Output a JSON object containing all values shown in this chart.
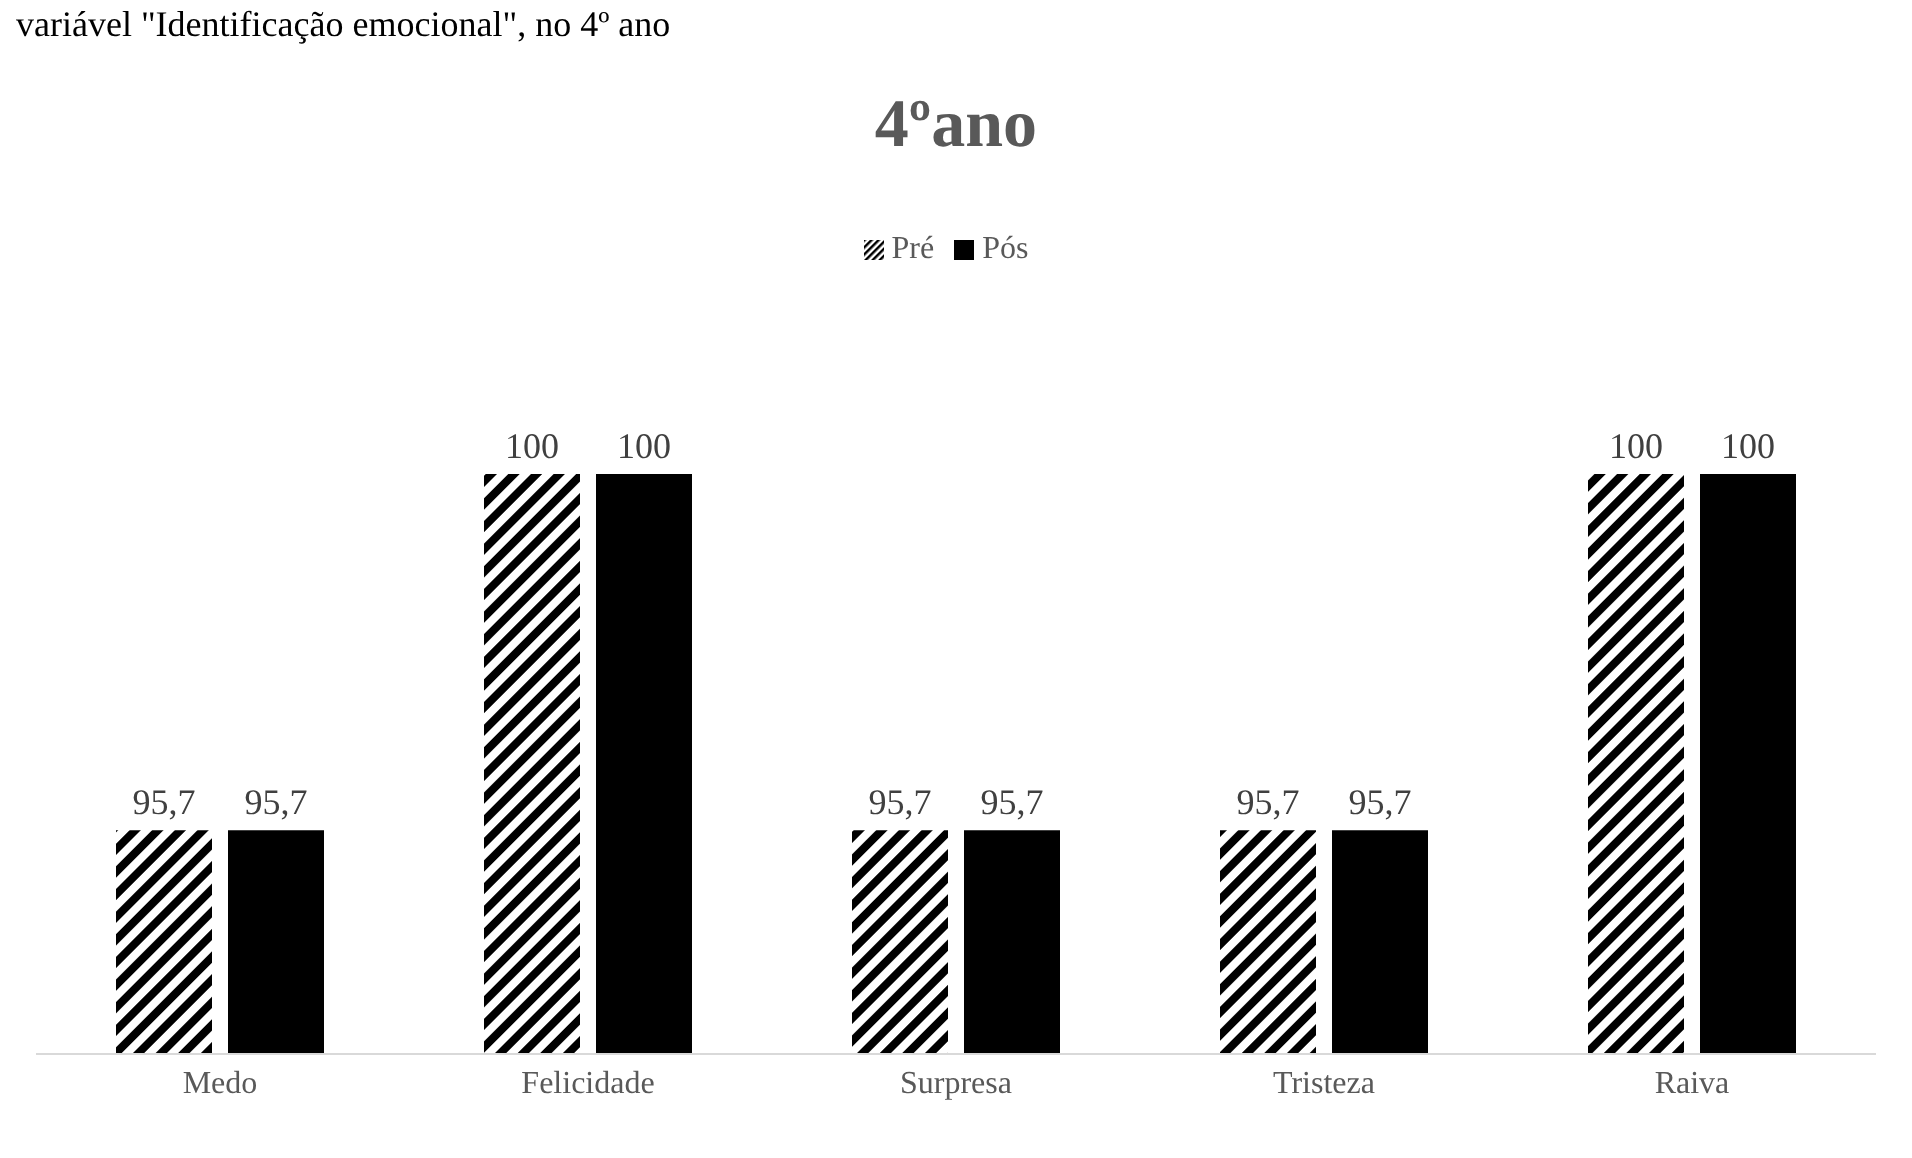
{
  "chart_data": {
    "type": "bar",
    "title": "4ºano",
    "annotations": [
      "variável \"Identificação emocional\", no 4º ano"
    ],
    "categories": [
      "Medo",
      "Felicidade",
      "Surpresa",
      "Tristeza",
      "Raiva"
    ],
    "series": [
      {
        "name": "Pré",
        "color": "#000000",
        "values": [
          95.7,
          100,
          95.7,
          95.7,
          100
        ],
        "value_labels": [
          "95,7",
          "100",
          "95,7",
          "95,7",
          "100"
        ]
      },
      {
        "name": "Pós",
        "color": "#000000",
        "values": [
          95.7,
          100,
          95.7,
          95.7,
          100
        ],
        "value_labels": [
          "95,7",
          "100",
          "95,7",
          "95,7",
          "100"
        ]
      }
    ],
    "ylim": [
      93,
      100
    ],
    "legend": "top",
    "grid": false,
    "tick_labels": "x"
  }
}
